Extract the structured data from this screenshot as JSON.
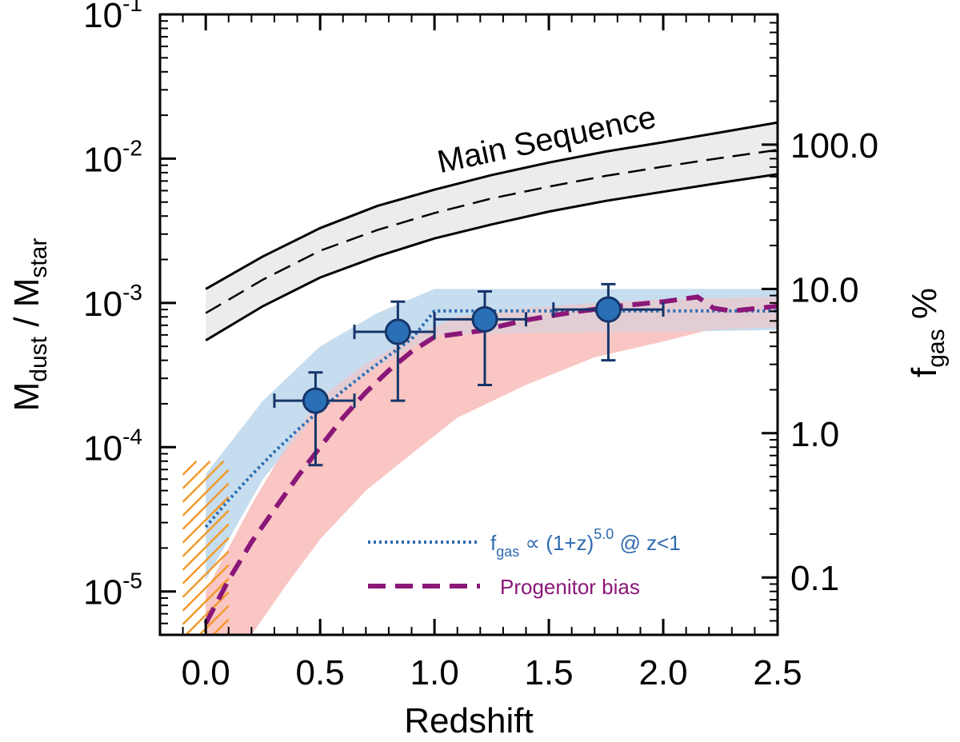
{
  "chart_data": {
    "type": "line",
    "x_axis": {
      "title": "Redshift",
      "range": [
        -0.2,
        2.5
      ],
      "ticks": [
        0.0,
        0.5,
        1.0,
        1.5,
        2.0,
        2.5
      ],
      "tick_labels": [
        "0.0",
        "0.5",
        "1.0",
        "1.5",
        "2.0",
        "2.5"
      ]
    },
    "y_axis": {
      "title_main": "M",
      "title_sub1": "dust",
      "title_mid": " / M",
      "title_sub2": "star",
      "scale": "log",
      "range": [
        5e-06,
        0.1
      ],
      "ticks": [
        1e-05,
        0.0001,
        0.001,
        0.01,
        0.1
      ],
      "tick_bases": [
        "10",
        "10",
        "10",
        "10",
        "10"
      ],
      "tick_exponents": [
        "-5",
        "-4",
        "-3",
        "-2",
        "-1"
      ]
    },
    "y2_axis": {
      "title_main": "f",
      "title_sub": "gas",
      "title_suffix": " %",
      "ticks": [
        1.25e-05,
        0.000125,
        0.00125,
        0.0125
      ],
      "tick_labels": [
        "0.1",
        "1.0",
        "10.0",
        "100.0"
      ]
    },
    "annotation": "Main Sequence",
    "main_sequence": {
      "x": [
        0.0,
        0.25,
        0.5,
        0.75,
        1.0,
        1.25,
        1.5,
        1.75,
        2.0,
        2.25,
        2.5
      ],
      "lower": [
        0.00055,
        0.00095,
        0.0015,
        0.0021,
        0.0028,
        0.0035,
        0.0043,
        0.0051,
        0.0059,
        0.0068,
        0.0078
      ],
      "median": [
        0.00085,
        0.00145,
        0.0023,
        0.0032,
        0.0042,
        0.0053,
        0.0064,
        0.0076,
        0.0088,
        0.0101,
        0.0115
      ],
      "upper": [
        0.00125,
        0.0021,
        0.0033,
        0.0047,
        0.0061,
        0.0077,
        0.0094,
        0.0112,
        0.013,
        0.0152,
        0.0178
      ]
    },
    "fgas_band": {
      "x": [
        0.0,
        0.25,
        0.5,
        0.75,
        1.0,
        1.5,
        2.0,
        2.5
      ],
      "lower": [
        1.2e-05,
        6e-05,
        0.00018,
        0.00036,
        0.0006,
        0.00062,
        0.00063,
        0.00065
      ],
      "upper": [
        6.5e-05,
        0.00021,
        0.0005,
        0.00085,
        0.00125,
        0.00125,
        0.00125,
        0.00125
      ]
    },
    "fgas_model": {
      "label_prefix": "f",
      "label_sub": "gas",
      "label_mid": " ∝ (1+z)",
      "label_sup": "5.0",
      "label_suffix": " @ z<1",
      "x": [
        0.0,
        0.1,
        0.2,
        0.3,
        0.4,
        0.5,
        0.6,
        0.7,
        0.8,
        0.9,
        1.0,
        1.5,
        2.0,
        2.5
      ],
      "y": [
        2.8e-05,
        4.3e-05,
        6.4e-05,
        9.3e-05,
        0.000131,
        0.000181,
        0.000246,
        0.000328,
        0.000432,
        0.000563,
        0.00088,
        0.00088,
        0.00088,
        0.00088
      ]
    },
    "progenitor_band": {
      "x": [
        0.0,
        0.1,
        0.2,
        0.35,
        0.5,
        0.7,
        0.9,
        1.1,
        1.4,
        1.7,
        2.0,
        2.2,
        2.5
      ],
      "lower": [
        5e-06,
        5e-06,
        5e-06,
        1.1e-05,
        2.3e-05,
        5e-05,
        9e-05,
        0.00016,
        0.00027,
        0.00042,
        0.00054,
        0.00065,
        0.00068
      ],
      "upper": [
        1e-05,
        2e-05,
        4e-05,
        0.0001,
        0.00022,
        0.00038,
        0.00058,
        0.0008,
        0.00092,
        0.001,
        0.00106,
        0.00108,
        0.0011
      ]
    },
    "progenitor_bias": {
      "label": "Progenitor bias",
      "x": [
        0.0,
        0.1,
        0.2,
        0.3,
        0.4,
        0.5,
        0.6,
        0.7,
        0.8,
        0.9,
        1.0,
        1.2,
        1.4,
        1.6,
        1.8,
        2.0,
        2.15,
        2.22,
        2.3,
        2.5
      ],
      "y": [
        6e-06,
        1.2e-05,
        2.2e-05,
        3.7e-05,
        6.2e-05,
        0.0001,
        0.00016,
        0.00024,
        0.00034,
        0.00046,
        0.00058,
        0.00064,
        0.00076,
        0.00086,
        0.00095,
        0.00102,
        0.0011,
        0.00092,
        0.00088,
        0.00095
      ]
    },
    "data_points": [
      {
        "x": 0.48,
        "y": 0.00021,
        "xerr_low": 0.3,
        "xerr_high": 0.65,
        "yerr_low": 7.5e-05,
        "yerr_high": 0.00033
      },
      {
        "x": 0.84,
        "y": 0.00063,
        "xerr_low": 0.65,
        "xerr_high": 1.0,
        "yerr_low": 0.00021,
        "yerr_high": 0.00102
      },
      {
        "x": 1.22,
        "y": 0.00077,
        "xerr_low": 1.0,
        "xerr_high": 1.4,
        "yerr_low": 0.00027,
        "yerr_high": 0.0012
      },
      {
        "x": 1.76,
        "y": 0.0009,
        "xerr_low": 1.52,
        "xerr_high": 2.0,
        "yerr_low": 0.0004,
        "yerr_high": 0.00135
      }
    ],
    "hatch_region": {
      "x": [
        -0.1,
        0.1
      ],
      "y": [
        5e-06,
        8e-05
      ]
    },
    "colors": {
      "main_sequence_fill": "#ececec",
      "fgas_band": "#bcd7ec",
      "fgas_line": "#2e6bb0",
      "progenitor_band": "#f9c6c4",
      "progenitor_line": "#8a1778",
      "point_fill": "#2a70b6",
      "point_edge": "#16356a",
      "hatch": "#f39a2c",
      "fgas_legend_text": "#2e6bb0",
      "progenitor_legend_text": "#8a1778"
    }
  }
}
